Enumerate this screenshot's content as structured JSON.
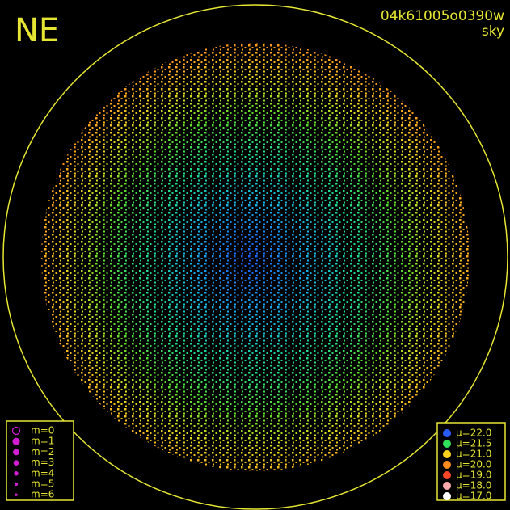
{
  "label": "NE",
  "image_id": "04k61005o0390w",
  "subtitle": "sky",
  "magnitude_legend": {
    "color": "#d21ed2",
    "entries": [
      "m=0",
      "m=1",
      "m=2",
      "m=3",
      "m=4",
      "m=5",
      "m=6"
    ]
  },
  "brightness_legend": [
    {
      "label": "μ=22.0",
      "color": "#2a5bff"
    },
    {
      "label": "μ=21.5",
      "color": "#2ee05a"
    },
    {
      "label": "μ=21.0",
      "color": "#ffd21e"
    },
    {
      "label": "μ=20.0",
      "color": "#ff8c1e"
    },
    {
      "label": "μ=19.0",
      "color": "#ff4628"
    },
    {
      "label": "μ=18.0",
      "color": "#ffaaaa"
    },
    {
      "label": "μ=17.0",
      "color": "#ffffff"
    }
  ]
}
